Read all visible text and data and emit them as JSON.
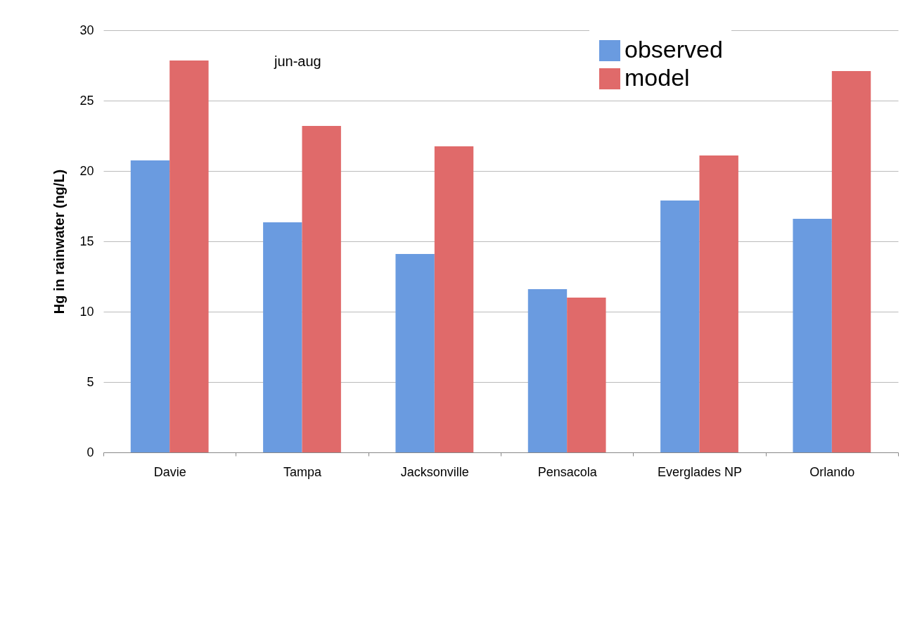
{
  "chart_data": {
    "type": "bar",
    "ylabel": "Hg in rainwater (ng/L)",
    "categories": [
      "Davie",
      "Tampa",
      "Jacksonville",
      "Pensacola",
      "Everglades NP",
      "Orlando"
    ],
    "series": [
      {
        "name": "observed",
        "color": "#6a9be0",
        "values": [
          20.75,
          16.35,
          14.1,
          11.6,
          17.9,
          16.6
        ]
      },
      {
        "name": "model",
        "color": "#e06a6a",
        "values": [
          27.85,
          23.2,
          21.75,
          11.0,
          21.1,
          27.1
        ]
      }
    ],
    "ylim": [
      0,
      30
    ],
    "yticks": [
      0,
      5,
      10,
      15,
      20,
      25,
      30
    ],
    "grid": "y",
    "legend": "top right",
    "annotations": [
      "jun-aug"
    ]
  }
}
